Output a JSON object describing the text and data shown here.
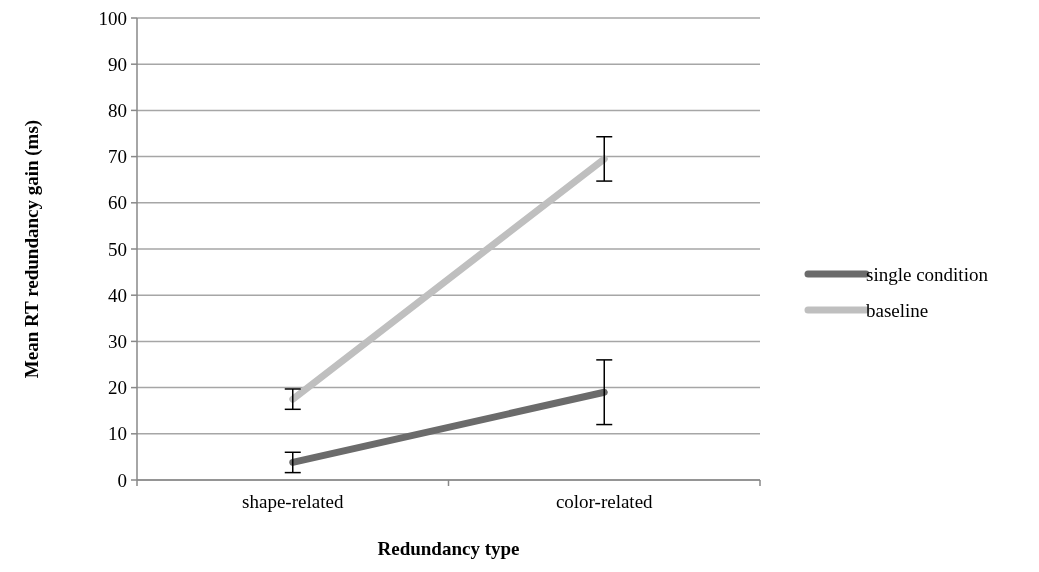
{
  "chart_data": {
    "type": "line",
    "xlabel": "Redundancy type",
    "ylabel": "Mean RT redundancy gain (ms)",
    "categories": [
      "shape-related",
      "color-related"
    ],
    "series": [
      {
        "name": "single condition",
        "color": "#6b6b6b",
        "values": [
          3.8,
          19
        ],
        "errors": [
          2.2,
          7
        ]
      },
      {
        "name": "baseline",
        "color": "#bfbfbf",
        "values": [
          17.5,
          69.5
        ],
        "errors": [
          2.2,
          4.8
        ]
      }
    ],
    "ylim": [
      0,
      100
    ],
    "yticks": [
      0,
      10,
      20,
      30,
      40,
      50,
      60,
      70,
      80,
      90,
      100
    ],
    "grid": "y",
    "legend": "right",
    "marker": "none"
  }
}
